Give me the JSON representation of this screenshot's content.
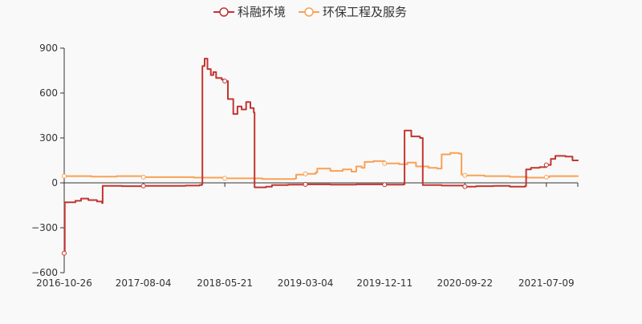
{
  "chart_data": {
    "type": "line",
    "title": "",
    "xlabel": "",
    "ylabel": "",
    "ylim": [
      -600,
      900
    ],
    "yticks": [
      -600,
      -300,
      0,
      300,
      600,
      900
    ],
    "xticks": [
      "2016-10-26",
      "2017-08-04",
      "2018-05-21",
      "2019-03-04",
      "2019-12-11",
      "2020-09-22",
      "2021-07-09"
    ],
    "x_range": [
      "2016-10-26",
      "2021-10-29"
    ],
    "grid": false,
    "legend_position": "top-center",
    "series": [
      {
        "name": "科融环境",
        "color": "#c23531",
        "points": [
          [
            "2016-10-26",
            -470
          ],
          [
            "2016-10-28",
            -130
          ],
          [
            "2016-12-05",
            -120
          ],
          [
            "2016-12-25",
            -105
          ],
          [
            "2017-01-20",
            -115
          ],
          [
            "2017-02-20",
            -125
          ],
          [
            "2017-03-10",
            -135
          ],
          [
            "2017-03-12",
            -20
          ],
          [
            "2017-05-20",
            -22
          ],
          [
            "2017-08-04",
            -20
          ],
          [
            "2018-01-01",
            -18
          ],
          [
            "2018-02-20",
            -15
          ],
          [
            "2018-02-28",
            -10
          ],
          [
            "2018-03-02",
            780
          ],
          [
            "2018-03-10",
            830
          ],
          [
            "2018-03-20",
            760
          ],
          [
            "2018-04-01",
            720
          ],
          [
            "2018-04-10",
            740
          ],
          [
            "2018-04-20",
            700
          ],
          [
            "2018-05-10",
            690
          ],
          [
            "2018-05-21",
            680
          ],
          [
            "2018-06-01",
            560
          ],
          [
            "2018-06-20",
            460
          ],
          [
            "2018-07-05",
            510
          ],
          [
            "2018-07-20",
            490
          ],
          [
            "2018-08-05",
            540
          ],
          [
            "2018-08-20",
            500
          ],
          [
            "2018-09-01",
            470
          ],
          [
            "2018-09-04",
            -30
          ],
          [
            "2018-10-15",
            -25
          ],
          [
            "2018-11-05",
            -15
          ],
          [
            "2019-01-01",
            -12
          ],
          [
            "2019-03-04",
            -10
          ],
          [
            "2019-06-01",
            -12
          ],
          [
            "2019-09-01",
            -10
          ],
          [
            "2019-12-11",
            -12
          ],
          [
            "2020-02-15",
            -10
          ],
          [
            "2020-02-20",
            350
          ],
          [
            "2020-03-15",
            310
          ],
          [
            "2020-04-15",
            300
          ],
          [
            "2020-04-25",
            -15
          ],
          [
            "2020-07-01",
            -18
          ],
          [
            "2020-09-22",
            -25
          ],
          [
            "2020-11-01",
            -22
          ],
          [
            "2021-01-01",
            -20
          ],
          [
            "2021-03-01",
            -25
          ],
          [
            "2021-04-25",
            -20
          ],
          [
            "2021-04-28",
            90
          ],
          [
            "2021-05-15",
            100
          ],
          [
            "2021-06-15",
            105
          ],
          [
            "2021-07-09",
            120
          ],
          [
            "2021-07-25",
            160
          ],
          [
            "2021-08-10",
            180
          ],
          [
            "2021-09-15",
            175
          ],
          [
            "2021-10-10",
            150
          ],
          [
            "2021-10-29",
            145
          ]
        ]
      },
      {
        "name": "环保工程及服务",
        "color": "#f9a154",
        "points": [
          [
            "2016-10-26",
            45
          ],
          [
            "2017-02-01",
            42
          ],
          [
            "2017-05-01",
            45
          ],
          [
            "2017-08-04",
            38
          ],
          [
            "2018-02-01",
            35
          ],
          [
            "2018-05-21",
            30
          ],
          [
            "2018-10-01",
            25
          ],
          [
            "2018-12-01",
            25
          ],
          [
            "2019-01-25",
            28
          ],
          [
            "2019-01-30",
            55
          ],
          [
            "2019-03-04",
            60
          ],
          [
            "2019-04-10",
            70
          ],
          [
            "2019-04-15",
            95
          ],
          [
            "2019-06-01",
            80
          ],
          [
            "2019-07-15",
            90
          ],
          [
            "2019-08-15",
            75
          ],
          [
            "2019-09-01",
            110
          ],
          [
            "2019-09-20",
            100
          ],
          [
            "2019-10-01",
            140
          ],
          [
            "2019-11-01",
            145
          ],
          [
            "2019-12-11",
            130
          ],
          [
            "2020-02-01",
            125
          ],
          [
            "2020-03-01",
            135
          ],
          [
            "2020-04-01",
            110
          ],
          [
            "2020-05-15",
            100
          ],
          [
            "2020-06-15",
            95
          ],
          [
            "2020-07-01",
            190
          ],
          [
            "2020-08-01",
            200
          ],
          [
            "2020-09-01",
            195
          ],
          [
            "2020-09-10",
            55
          ],
          [
            "2020-09-22",
            50
          ],
          [
            "2020-12-01",
            45
          ],
          [
            "2021-03-01",
            40
          ],
          [
            "2021-05-01",
            35
          ],
          [
            "2021-07-09",
            38
          ],
          [
            "2021-07-20",
            45
          ],
          [
            "2021-10-29",
            40
          ]
        ]
      }
    ],
    "markers": [
      "2016-10-26",
      "2017-08-04",
      "2018-05-21",
      "2019-03-04",
      "2019-12-11",
      "2020-09-22",
      "2021-07-09"
    ]
  }
}
